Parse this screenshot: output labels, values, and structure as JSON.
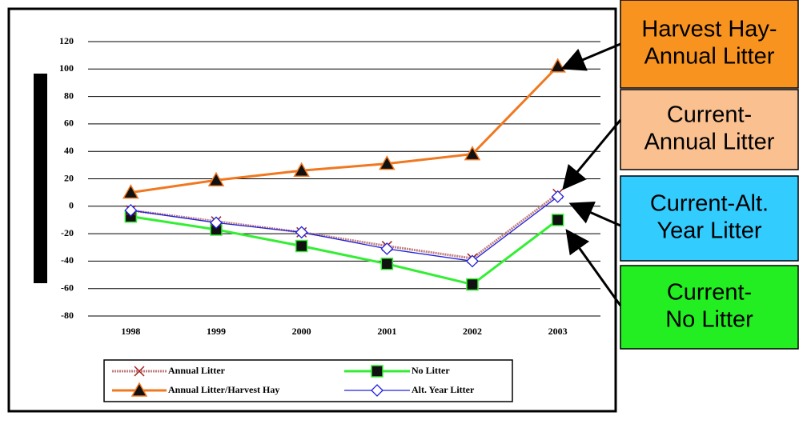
{
  "chart_data": {
    "type": "line",
    "categories": [
      "1998",
      "1999",
      "2000",
      "2001",
      "2002",
      "2003"
    ],
    "series": [
      {
        "name": "Annual Litter",
        "color": "#c08080",
        "marker": "x",
        "values": [
          -3,
          -11,
          -19,
          -29,
          -38,
          9
        ]
      },
      {
        "name": "No Litter",
        "color": "#33ee33",
        "marker": "square",
        "values": [
          -7.5,
          -17,
          -29,
          -42,
          -57,
          -10
        ]
      },
      {
        "name": "Annual Litter/Harvest Hay",
        "color": "#f07820",
        "marker": "triangle",
        "values": [
          10,
          19,
          26,
          31,
          38,
          102
        ]
      },
      {
        "name": "Alt. Year Litter",
        "color": "#2020e0",
        "marker": "diamond",
        "values": [
          -3,
          -12,
          -19,
          -31,
          -40,
          7
        ]
      }
    ],
    "ylim": [
      -80,
      120
    ],
    "yticks": [
      -80,
      -60,
      -40,
      -20,
      0,
      20,
      40,
      60,
      80,
      100,
      120
    ],
    "grid": true,
    "annotations": [
      {
        "lines": [
          "Harvest Hay-",
          "Annual Litter"
        ],
        "color": "#f7931e"
      },
      {
        "lines": [
          "Current-",
          "Annual Litter"
        ],
        "color": "#fac090"
      },
      {
        "lines": [
          "Current-Alt.",
          "Year Litter"
        ],
        "color": "#33ccff"
      },
      {
        "lines": [
          "Current-",
          "No Litter"
        ],
        "color": "#22ee22"
      }
    ]
  }
}
